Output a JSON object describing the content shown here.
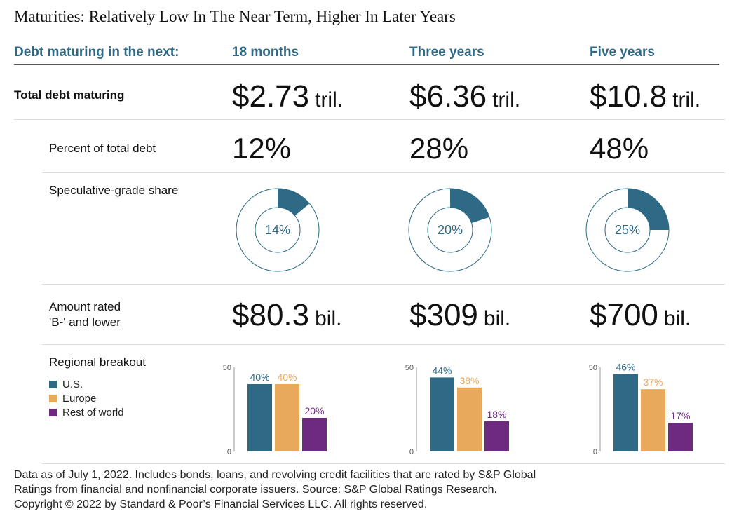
{
  "title": "Maturities: Relatively Low In The Near Term, Higher In Later Years",
  "header": {
    "row_label": "Debt maturing in the next:",
    "columns": [
      "18 months",
      "Three years",
      "Five years"
    ]
  },
  "rows": {
    "total": {
      "label": "Total debt maturing",
      "values": [
        {
          "num": "$2.73",
          "unit": "tril."
        },
        {
          "num": "$6.36",
          "unit": "tril."
        },
        {
          "num": "$10.8",
          "unit": "tril."
        }
      ]
    },
    "percent": {
      "label": "Percent of total debt",
      "values": [
        "12%",
        "28%",
        "48%"
      ]
    },
    "spec": {
      "label": "Speculative-grade share",
      "values": [
        "14%",
        "20%",
        "25%"
      ]
    },
    "bminus": {
      "label_line1": "Amount rated",
      "label_line2": "'B-' and lower",
      "values": [
        {
          "num": "$80.3",
          "unit": "bil."
        },
        {
          "num": "$309",
          "unit": "bil."
        },
        {
          "num": "$700",
          "unit": "bil."
        }
      ]
    },
    "regional": {
      "label": "Regional breakout"
    }
  },
  "legend": [
    {
      "name": "U.S.",
      "color": "#2e6a85"
    },
    {
      "name": "Europe",
      "color": "#e8a95a"
    },
    {
      "name": "Rest of world",
      "color": "#6e2a7e"
    }
  ],
  "chart_data": [
    {
      "type": "pie",
      "title": "",
      "slices": [
        {
          "label": "Speculative-grade",
          "value": 14
        },
        {
          "label": "Other",
          "value": 86
        }
      ],
      "center_label": "14%",
      "colors": [
        "#2e6a85",
        "#ffffff"
      ]
    },
    {
      "type": "pie",
      "title": "",
      "slices": [
        {
          "label": "Speculative-grade",
          "value": 20
        },
        {
          "label": "Other",
          "value": 80
        }
      ],
      "center_label": "20%",
      "colors": [
        "#2e6a85",
        "#ffffff"
      ]
    },
    {
      "type": "pie",
      "title": "",
      "slices": [
        {
          "label": "Speculative-grade",
          "value": 25
        },
        {
          "label": "Other",
          "value": 75
        }
      ],
      "center_label": "25%",
      "colors": [
        "#2e6a85",
        "#ffffff"
      ]
    },
    {
      "type": "bar",
      "categories": [
        "U.S.",
        "Europe",
        "Rest of world"
      ],
      "values": [
        40,
        40,
        20
      ],
      "labels": [
        "40%",
        "40%",
        "20%"
      ],
      "ylim": [
        0,
        50
      ],
      "yticks": [
        "0",
        "50"
      ],
      "colors": [
        "#2e6a85",
        "#e8a95a",
        "#6e2a7e"
      ]
    },
    {
      "type": "bar",
      "categories": [
        "U.S.",
        "Europe",
        "Rest of world"
      ],
      "values": [
        44,
        38,
        18
      ],
      "labels": [
        "44%",
        "38%",
        "18%"
      ],
      "ylim": [
        0,
        50
      ],
      "yticks": [
        "0",
        "50"
      ],
      "colors": [
        "#2e6a85",
        "#e8a95a",
        "#6e2a7e"
      ]
    },
    {
      "type": "bar",
      "categories": [
        "U.S.",
        "Europe",
        "Rest of world"
      ],
      "values": [
        46,
        37,
        17
      ],
      "labels": [
        "46%",
        "37%",
        "17%"
      ],
      "ylim": [
        0,
        50
      ],
      "yticks": [
        "0",
        "50"
      ],
      "colors": [
        "#2e6a85",
        "#e8a95a",
        "#6e2a7e"
      ]
    }
  ],
  "footnote": {
    "line1": "Data as of July 1, 2022.  Includes bonds, loans, and revolving credit facilities that are rated by S&P Global",
    "line2": "Ratings from financial and nonfinancial corporate issuers. Source: S&P Global Ratings Research.",
    "line3": "Copyright © 2022 by Standard & Poor’s Financial Services LLC. All rights reserved."
  }
}
